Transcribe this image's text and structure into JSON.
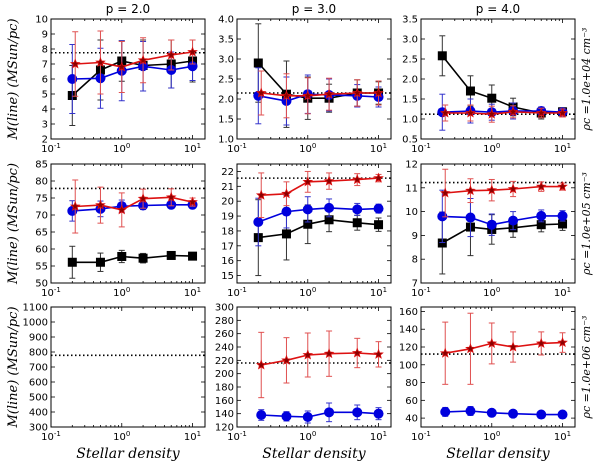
{
  "figure": {
    "column_titles": [
      "p = 2.0",
      "p = 3.0",
      "p = 4.0"
    ],
    "row_labels": [
      "ρc =1.0e+04 cm⁻³",
      "ρc =1.0e+05 cm⁻³",
      "ρc =1.0e+06 cm⁻³"
    ],
    "ylabel": "M(line) (MSun/pc)",
    "xlabel": "Stellar density",
    "colors": {
      "black": "#000000",
      "blue": "#0000dd",
      "red": "#dd1111",
      "err_black": "#333333",
      "err_blue": "#3333cc",
      "err_red": "#e05050"
    }
  },
  "chart_data": [
    {
      "type": "line",
      "title": "p = 2.0",
      "row": 0,
      "col": 0,
      "xscale": "log",
      "xlim": [
        0.1,
        15
      ],
      "ylim": [
        2,
        10
      ],
      "yticks": [
        2,
        3,
        4,
        5,
        6,
        7,
        8,
        9,
        10
      ],
      "xticklabels": [
        "10^-1",
        "10^0",
        "10^1"
      ],
      "ylabel": "M(line) (MSun/pc)",
      "xlabel": "",
      "reference_line": 7.75,
      "series": [
        {
          "name": "black",
          "marker": "square",
          "x": [
            0.2,
            0.5,
            1,
            2,
            5,
            10
          ],
          "values": [
            4.9,
            6.6,
            7.2,
            6.9,
            7.0,
            7.2
          ],
          "err": [
            2.0,
            2.0,
            1.35,
            1.7,
            1.6,
            1.4
          ]
        },
        {
          "name": "blue",
          "marker": "circle",
          "x": [
            0.2,
            0.5,
            1,
            2,
            5,
            10
          ],
          "values": [
            6.0,
            6.05,
            6.55,
            6.85,
            6.6,
            6.85
          ],
          "err": [
            2.3,
            2.0,
            2.0,
            1.65,
            1.2,
            0.95
          ]
        },
        {
          "name": "red",
          "marker": "star",
          "x": [
            0.22,
            0.5,
            1,
            2,
            5,
            10
          ],
          "values": [
            7.0,
            7.1,
            6.8,
            7.25,
            7.6,
            7.8
          ],
          "err": [
            2.15,
            2.1,
            1.7,
            1.5,
            1.0,
            0.8
          ]
        }
      ]
    },
    {
      "type": "line",
      "title": "p = 3.0",
      "row": 0,
      "col": 1,
      "xscale": "log",
      "xlim": [
        0.1,
        15
      ],
      "ylim": [
        1.0,
        4.0
      ],
      "yticks": [
        1.0,
        1.5,
        2.0,
        2.5,
        3.0,
        3.5,
        4.0
      ],
      "xticklabels": [
        "10^-1",
        "10^0",
        "10^1"
      ],
      "reference_line": 2.15,
      "series": [
        {
          "name": "black",
          "marker": "square",
          "x": [
            0.2,
            0.5,
            1,
            2,
            5,
            10
          ],
          "values": [
            2.9,
            2.12,
            2.02,
            2.02,
            2.15,
            2.15
          ],
          "err": [
            0.98,
            0.83,
            0.53,
            0.35,
            0.33,
            0.28
          ]
        },
        {
          "name": "blue",
          "marker": "circle",
          "x": [
            0.2,
            0.5,
            1,
            2,
            5,
            10
          ],
          "values": [
            2.08,
            1.95,
            2.12,
            2.1,
            2.08,
            2.05
          ],
          "err": [
            0.7,
            0.6,
            0.48,
            0.4,
            0.28,
            0.25
          ]
        },
        {
          "name": "red",
          "marker": "star",
          "x": [
            0.22,
            0.5,
            1,
            2,
            5,
            10
          ],
          "values": [
            2.15,
            2.08,
            2.08,
            2.12,
            2.15,
            2.15
          ],
          "err": [
            0.55,
            0.55,
            0.45,
            0.4,
            0.33,
            0.3
          ]
        }
      ]
    },
    {
      "type": "line",
      "title": "p = 4.0",
      "row": 0,
      "col": 2,
      "xscale": "log",
      "xlim": [
        0.1,
        15
      ],
      "ylim": [
        0.5,
        3.5
      ],
      "yticks": [
        0.5,
        1.0,
        1.5,
        2.0,
        2.5,
        3.0,
        3.5
      ],
      "xticklabels": [
        "10^-1",
        "10^0",
        "10^1"
      ],
      "reference_line": 1.12,
      "row_label": "ρc =1.0e+04 cm⁻³",
      "series": [
        {
          "name": "black",
          "marker": "square",
          "x": [
            0.2,
            0.5,
            1,
            2,
            5,
            10
          ],
          "values": [
            2.58,
            1.7,
            1.52,
            1.3,
            1.15,
            1.18
          ],
          "err": [
            0.5,
            0.38,
            0.33,
            0.22,
            0.15,
            0.1
          ]
        },
        {
          "name": "blue",
          "marker": "circle",
          "x": [
            0.2,
            0.5,
            1,
            2,
            5,
            10
          ],
          "values": [
            1.17,
            1.2,
            1.17,
            1.2,
            1.2,
            1.17
          ],
          "err": [
            0.45,
            0.3,
            0.2,
            0.2,
            0.1,
            0.08
          ]
        },
        {
          "name": "red",
          "marker": "star",
          "x": [
            0.22,
            0.5,
            1,
            2,
            5,
            10
          ],
          "values": [
            1.15,
            1.15,
            1.12,
            1.18,
            1.15,
            1.15
          ],
          "err": [
            0.2,
            0.2,
            0.2,
            0.15,
            0.12,
            0.1
          ]
        }
      ]
    },
    {
      "type": "line",
      "title": "",
      "row": 1,
      "col": 0,
      "xscale": "log",
      "xlim": [
        0.1,
        15
      ],
      "ylim": [
        50,
        85
      ],
      "yticks": [
        50,
        55,
        60,
        65,
        70,
        75,
        80,
        85
      ],
      "xticklabels": [
        "10^-1",
        "10^0",
        "10^1"
      ],
      "ylabel": "M(line) (MSun/pc)",
      "reference_line": 77.8,
      "series": [
        {
          "name": "black",
          "marker": "square",
          "x": [
            0.2,
            0.5,
            1,
            2,
            5,
            10
          ],
          "values": [
            56.1,
            56.1,
            57.8,
            57.3,
            58.1,
            57.9
          ],
          "err": [
            4.7,
            2.7,
            1.8,
            1.4,
            0.8,
            0.8
          ]
        },
        {
          "name": "blue",
          "marker": "circle",
          "x": [
            0.2,
            0.5,
            1,
            2,
            5,
            10
          ],
          "values": [
            71.2,
            71.8,
            72.6,
            72.8,
            73.0,
            73.0
          ],
          "err": [
            3.0,
            2.3,
            1.8,
            1.2,
            0.8,
            0.8
          ]
        },
        {
          "name": "red",
          "marker": "star",
          "x": [
            0.22,
            0.5,
            1,
            2,
            5,
            10
          ],
          "values": [
            72.5,
            72.9,
            71.5,
            74.8,
            75.2,
            73.8
          ],
          "err": [
            7.8,
            5.3,
            5.0,
            2.8,
            2.5,
            1.2
          ]
        }
      ]
    },
    {
      "type": "line",
      "title": "",
      "row": 1,
      "col": 1,
      "xscale": "log",
      "xlim": [
        0.1,
        15
      ],
      "ylim": [
        14.5,
        22.5
      ],
      "yticks": [
        15,
        16,
        17,
        18,
        19,
        20,
        21,
        22
      ],
      "xticklabels": [
        "10^-1",
        "10^0",
        "10^1"
      ],
      "reference_line": 21.55,
      "series": [
        {
          "name": "black",
          "marker": "square",
          "x": [
            0.2,
            0.5,
            1,
            2,
            5,
            10
          ],
          "values": [
            17.55,
            17.8,
            18.45,
            18.75,
            18.55,
            18.42
          ],
          "err": [
            2.55,
            1.75,
            1.3,
            0.8,
            0.5,
            0.45
          ]
        },
        {
          "name": "blue",
          "marker": "circle",
          "x": [
            0.2,
            0.5,
            1,
            2,
            5,
            10
          ],
          "values": [
            18.6,
            19.3,
            19.45,
            19.55,
            19.45,
            19.5
          ],
          "err": [
            1.6,
            1.1,
            0.85,
            0.6,
            0.4,
            0.3
          ]
        },
        {
          "name": "red",
          "marker": "star",
          "x": [
            0.22,
            0.5,
            1,
            2,
            5,
            10
          ],
          "values": [
            20.4,
            20.5,
            21.3,
            21.35,
            21.45,
            21.55
          ],
          "err": [
            1.5,
            0.8,
            0.7,
            0.55,
            0.4,
            0.25
          ]
        }
      ]
    },
    {
      "type": "line",
      "title": "",
      "row": 1,
      "col": 2,
      "xscale": "log",
      "xlim": [
        0.1,
        15
      ],
      "ylim": [
        7,
        12
      ],
      "yticks": [
        7,
        8,
        9,
        10,
        11,
        12
      ],
      "xticklabels": [
        "10^-1",
        "10^0",
        "10^1"
      ],
      "reference_line": 11.22,
      "row_label": "ρc =1.0e+05 cm⁻³",
      "series": [
        {
          "name": "black",
          "marker": "square",
          "x": [
            0.2,
            0.5,
            1,
            2,
            5,
            10
          ],
          "values": [
            8.68,
            9.35,
            9.25,
            9.32,
            9.45,
            9.48
          ],
          "err": [
            1.3,
            1.2,
            0.62,
            0.4,
            0.3,
            0.27
          ]
        },
        {
          "name": "blue",
          "marker": "circle",
          "x": [
            0.2,
            0.5,
            1,
            2,
            5,
            10
          ],
          "values": [
            9.8,
            9.75,
            9.45,
            9.62,
            9.82,
            9.82
          ],
          "err": [
            1.1,
            0.8,
            0.45,
            0.38,
            0.25,
            0.22
          ]
        },
        {
          "name": "red",
          "marker": "star",
          "x": [
            0.22,
            0.5,
            1,
            2,
            5,
            10
          ],
          "values": [
            10.78,
            10.88,
            10.9,
            10.95,
            11.05,
            11.05
          ],
          "err": [
            1.0,
            0.5,
            0.45,
            0.32,
            0.2,
            0.15
          ]
        }
      ]
    },
    {
      "type": "line",
      "title": "",
      "row": 2,
      "col": 0,
      "xscale": "log",
      "xlim": [
        0.1,
        15
      ],
      "ylim": [
        300,
        1100
      ],
      "yticks": [
        300,
        400,
        500,
        600,
        700,
        800,
        900,
        1000,
        1100
      ],
      "xticklabels": [
        "10^-1",
        "10^0",
        "10^1"
      ],
      "ylabel": "M(line) (MSun/pc)",
      "xlabel": "Stellar density",
      "reference_line": 778,
      "series": []
    },
    {
      "type": "line",
      "title": "",
      "row": 2,
      "col": 1,
      "xscale": "log",
      "xlim": [
        0.1,
        15
      ],
      "ylim": [
        120,
        300
      ],
      "yticks": [
        120,
        140,
        160,
        180,
        200,
        220,
        240,
        260,
        280,
        300
      ],
      "xticklabels": [
        "10^-1",
        "10^0",
        "10^1"
      ],
      "xlabel": "Stellar density",
      "reference_line": 216,
      "series": [
        {
          "name": "blue",
          "marker": "circle",
          "x": [
            0.22,
            0.5,
            1,
            2,
            5,
            10
          ],
          "values": [
            138,
            136,
            135,
            142,
            142,
            140
          ],
          "err": [
            8,
            7,
            9,
            14,
            11,
            9
          ]
        },
        {
          "name": "red",
          "marker": "star",
          "x": [
            0.22,
            0.5,
            1,
            2,
            5,
            10
          ],
          "values": [
            213,
            220,
            228,
            230,
            231,
            229
          ],
          "err": [
            49,
            34,
            33,
            34,
            22,
            19
          ]
        }
      ]
    },
    {
      "type": "line",
      "title": "",
      "row": 2,
      "col": 2,
      "xscale": "log",
      "xlim": [
        0.1,
        15
      ],
      "ylim": [
        30,
        165
      ],
      "yticks": [
        40,
        60,
        80,
        100,
        120,
        140,
        160
      ],
      "xticklabels": [
        "10^-1",
        "10^0",
        "10^1"
      ],
      "xlabel": "Stellar density",
      "reference_line": 112,
      "row_label": "ρc =1.0e+06 cm⁻³",
      "series": [
        {
          "name": "blue",
          "marker": "circle",
          "x": [
            0.22,
            0.5,
            1,
            2,
            5,
            10
          ],
          "values": [
            47,
            48,
            46,
            45,
            44,
            44
          ],
          "err": [
            5,
            5,
            3,
            2,
            2,
            2
          ]
        },
        {
          "name": "red",
          "marker": "star",
          "x": [
            0.22,
            0.5,
            1,
            2,
            5,
            10
          ],
          "values": [
            113,
            118,
            124,
            120,
            124,
            125
          ],
          "err": [
            35,
            40,
            23,
            17,
            13,
            11
          ]
        }
      ]
    }
  ]
}
